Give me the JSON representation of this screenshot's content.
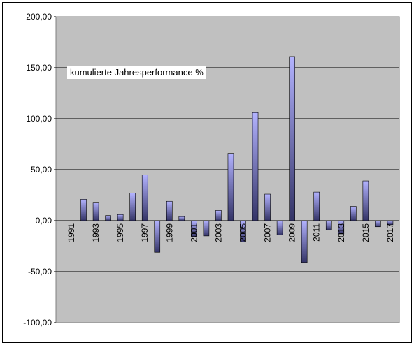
{
  "chart_data": {
    "type": "bar",
    "annotation": "kumulierte Jahresperformance %",
    "title": "",
    "xlabel": "",
    "ylabel": "",
    "ylim": [
      -100,
      200
    ],
    "yticks": [
      "200,00",
      "150,00",
      "100,00",
      "50,00",
      "0,00",
      "-50,00",
      "-100,00"
    ],
    "ytick_values": [
      200,
      150,
      100,
      50,
      0,
      -50,
      -100
    ],
    "categories": [
      "1991",
      "1992",
      "1993",
      "1994",
      "1995",
      "1996",
      "1997",
      "1998",
      "1999",
      "2000",
      "2001",
      "2002",
      "2003",
      "2004",
      "2005",
      "2006",
      "2007",
      "2008",
      "2009",
      "2010",
      "2011",
      "2012",
      "2013",
      "2014",
      "2015",
      "2016",
      "2017",
      "2018"
    ],
    "xtick_labels": [
      "1991",
      "1993",
      "1995",
      "1997",
      "1999",
      "2001",
      "2003",
      "2005",
      "2007",
      "2009",
      "2011",
      "2013",
      "2015",
      "2017"
    ],
    "values": [
      0,
      21,
      18,
      5,
      6,
      27,
      45,
      -31,
      19,
      4,
      -16,
      -15,
      10,
      66,
      -21,
      106,
      26,
      -14,
      161,
      -41,
      28,
      -9,
      -13,
      14,
      39,
      -6,
      -4,
      0
    ],
    "grid": true,
    "plot_background": "#c0c0c0",
    "bar_color": "#9999ff"
  }
}
